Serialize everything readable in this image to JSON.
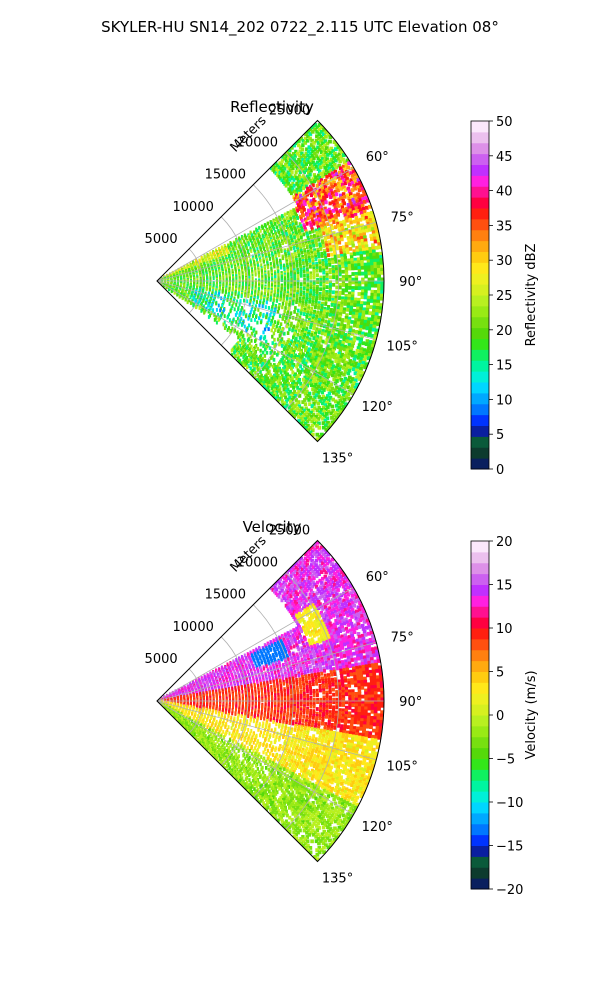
{
  "suptitle": "SKYLER-HU  SN14_202  0722_2.115 UTC Elevation 08°",
  "chart_data": [
    {
      "type": "heatmap",
      "projection": "polar-sector",
      "title": "Reflectivity",
      "radial_label": "Meters",
      "radial_ticks": [
        5000,
        10000,
        15000,
        20000,
        25000
      ],
      "radial_tick_labels": [
        "5000",
        "10000",
        "15000",
        "20000",
        "25000"
      ],
      "angular_ticks_deg": [
        60,
        75,
        90,
        105,
        120,
        135
      ],
      "angular_tick_labels": [
        "60°",
        "75°",
        "90°",
        "105°",
        "120°",
        "135°"
      ],
      "theta_range_deg": [
        45,
        135
      ],
      "r_range": [
        0,
        25000
      ],
      "grid": true,
      "colorbar": {
        "label": "Reflectivity dBZ",
        "range": [
          0,
          50
        ],
        "ticks": [
          0,
          5,
          10,
          15,
          20,
          25,
          30,
          35,
          40,
          45,
          50
        ],
        "tick_labels": [
          "0",
          "5",
          "10",
          "15",
          "20",
          "25",
          "30",
          "35",
          "40",
          "45",
          "50"
        ],
        "colors": [
          "#0a1f5e",
          "#0d3b2e",
          "#0a5a3a",
          "#0a1fa0",
          "#0033ff",
          "#0077ff",
          "#00a8ff",
          "#00d6ff",
          "#00f0d8",
          "#00f5a0",
          "#10f060",
          "#33e61a",
          "#55d90a",
          "#77e010",
          "#99ea15",
          "#b8f020",
          "#d6f020",
          "#eef020",
          "#ffe81a",
          "#ffcc10",
          "#ffaa10",
          "#ff8010",
          "#ff5010",
          "#ff2010",
          "#ff0040",
          "#ff1090",
          "#ff20e0",
          "#c030ff",
          "#cc60f0",
          "#dd90e8",
          "#ecc0ee",
          "#fbe8fb"
        ]
      },
      "features": [
        {
          "name": "main-band",
          "theta": [
            55,
            135
          ],
          "r": [
            0,
            25000
          ],
          "base_value": 20
        },
        {
          "name": "strong-core-north",
          "theta": [
            58,
            70
          ],
          "r": [
            17000,
            24000
          ],
          "value": 38
        },
        {
          "name": "southern-echo",
          "theta": [
            105,
            135
          ],
          "r": [
            8000,
            25000
          ],
          "base_value": 22
        },
        {
          "name": "near-radar-weak",
          "theta": [
            95,
            125
          ],
          "r": [
            3000,
            12000
          ],
          "value": 12
        }
      ]
    },
    {
      "type": "heatmap",
      "projection": "polar-sector",
      "title": "Velocity",
      "radial_label": "Meters",
      "radial_ticks": [
        5000,
        10000,
        15000,
        20000,
        25000
      ],
      "radial_tick_labels": [
        "5000",
        "10000",
        "15000",
        "20000",
        "25000"
      ],
      "angular_ticks_deg": [
        60,
        75,
        90,
        105,
        120,
        135
      ],
      "angular_tick_labels": [
        "60°",
        "75°",
        "90°",
        "105°",
        "120°",
        "135°"
      ],
      "theta_range_deg": [
        45,
        135
      ],
      "r_range": [
        0,
        25000
      ],
      "grid": true,
      "colorbar": {
        "label": "Velocity (m/s)",
        "range": [
          -20,
          20
        ],
        "ticks": [
          -20,
          -15,
          -10,
          -5,
          0,
          5,
          10,
          15,
          20
        ],
        "tick_labels": [
          "−20",
          "−15",
          "−10",
          "−5",
          "0",
          "5",
          "10",
          "15",
          "20"
        ],
        "colors": [
          "#0a1f5e",
          "#0d3b2e",
          "#0a5a3a",
          "#0a1fa0",
          "#0033ff",
          "#0077ff",
          "#00a8ff",
          "#00d6ff",
          "#00f0d8",
          "#00f5a0",
          "#10f060",
          "#33e61a",
          "#55d90a",
          "#77e010",
          "#99ea15",
          "#b8f020",
          "#d6f020",
          "#eef020",
          "#ffe81a",
          "#ffcc10",
          "#ffaa10",
          "#ff8010",
          "#ff5010",
          "#ff2010",
          "#ff0040",
          "#ff1090",
          "#ff20e0",
          "#c030ff",
          "#cc60f0",
          "#dd90e8",
          "#ecc0ee",
          "#fbe8fb"
        ]
      },
      "features": [
        {
          "name": "outbound-north",
          "theta": [
            55,
            80
          ],
          "r": [
            0,
            25000
          ],
          "value": 15
        },
        {
          "name": "outbound-mid",
          "theta": [
            80,
            100
          ],
          "r": [
            0,
            25000
          ],
          "value": 9
        },
        {
          "name": "near-zero-south",
          "theta": [
            100,
            125
          ],
          "r": [
            0,
            25000
          ],
          "value": 3
        },
        {
          "name": "inbound-edge",
          "theta": [
            125,
            135
          ],
          "r": [
            0,
            25000
          ],
          "value": -3
        },
        {
          "name": "inbound-core",
          "theta": [
            65,
            72
          ],
          "r": [
            12000,
            16000
          ],
          "value": -13
        }
      ]
    }
  ]
}
